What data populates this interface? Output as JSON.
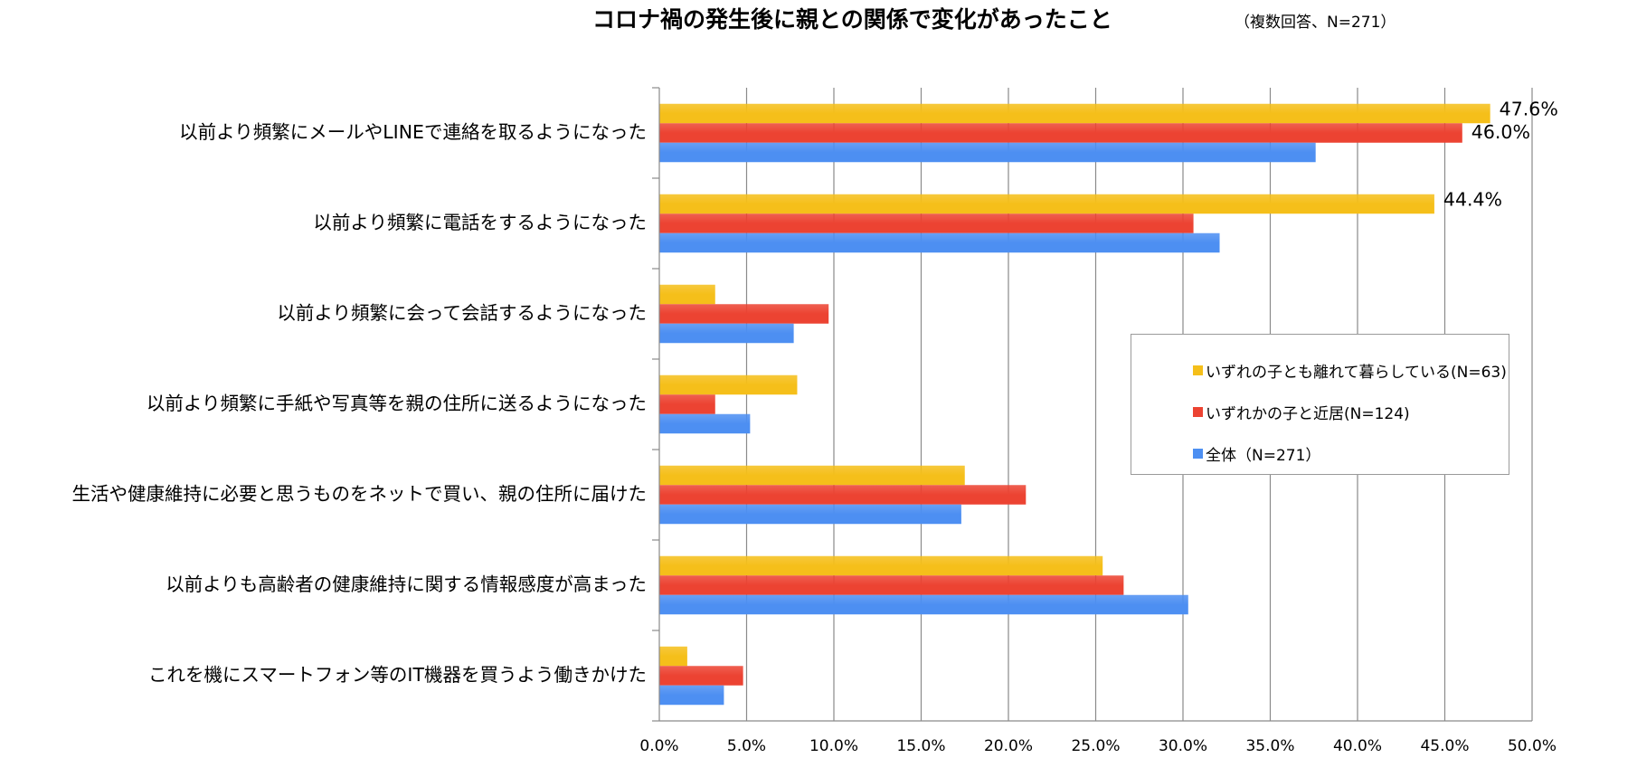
{
  "title": "コロナ禍の発生後に親との関係で変化があったこと",
  "note": "（複数回答、N=271）",
  "chart_data": {
    "type": "bar",
    "orientation": "horizontal",
    "categories": [
      "以前より頻繁にメールやLINEで連絡を取るようになった",
      "以前より頻繁に電話をするようになった",
      "以前より頻繁に会って会話するようになった",
      "以前より頻繁に手紙や写真等を親の住所に送るようになった",
      "生活や健康維持に必要と思うものをネットで買い、親の住所に届けた",
      "以前よりも高齢者の健康維持に関する情報感度が高まった",
      "これを機にスマートフォン等のIT機器を買うよう働きかけた"
    ],
    "series": [
      {
        "name": "いずれの子とも離れて暮らしている(N=63)",
        "color": "#f5bf1a",
        "values": [
          47.6,
          44.4,
          3.2,
          7.9,
          17.5,
          25.4,
          1.6
        ],
        "labels": [
          "47.6%",
          "44.4%",
          "",
          "",
          "",
          "",
          ""
        ]
      },
      {
        "name": "いずれかの子と近居(N=124)",
        "color": "#ec4332",
        "values": [
          46.0,
          30.6,
          9.7,
          3.2,
          21.0,
          26.6,
          4.8
        ],
        "labels": [
          "46.0%",
          "",
          "",
          "",
          "",
          "",
          ""
        ]
      },
      {
        "name": "全体（N=271）",
        "color": "#4d8ff2",
        "values": [
          37.6,
          32.1,
          7.7,
          5.2,
          17.3,
          30.3,
          3.7
        ],
        "labels": [
          "",
          "",
          "",
          "",
          "",
          "",
          ""
        ]
      }
    ],
    "xlim": [
      0,
      50
    ],
    "ticks": [
      "0.0%",
      "5.0%",
      "10.0%",
      "15.0%",
      "20.0%",
      "25.0%",
      "30.0%",
      "35.0%",
      "40.0%",
      "45.0%",
      "50.0%"
    ],
    "tick_values": [
      0,
      5,
      10,
      15,
      20,
      25,
      30,
      35,
      40,
      45,
      50
    ],
    "grid": true,
    "legend": "right-middle"
  }
}
